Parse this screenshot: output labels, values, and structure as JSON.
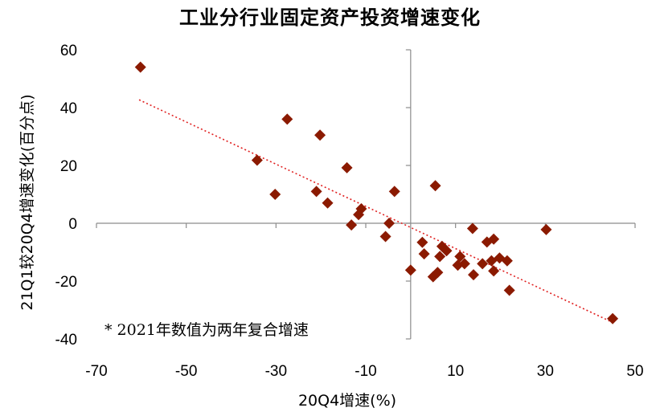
{
  "chart_data": {
    "type": "scatter",
    "title": "工业分行业固定资产投资增速变化",
    "xlabel": "20Q4增速(%)",
    "ylabel": "21Q1较20Q4增速变化(百分点)",
    "note": "* 2021年数值为两年复合增速",
    "xlim": [
      -70,
      50
    ],
    "ylim": [
      -40,
      60
    ],
    "x_ticks": [
      "-70",
      "-50",
      "-30",
      "-10",
      "10",
      "30",
      "50"
    ],
    "y_ticks": [
      "60",
      "40",
      "20",
      "0",
      "-20",
      "-40"
    ],
    "x_tick_values": [
      -70,
      -50,
      -30,
      -10,
      10,
      30,
      50
    ],
    "y_tick_values": [
      60,
      40,
      20,
      0,
      -20,
      -40
    ],
    "marker_color": "#8B1A00",
    "trend_color": "#E02020",
    "grid": false,
    "points": [
      {
        "x": -60.2,
        "y": 54.0
      },
      {
        "x": -27.5,
        "y": 36.0
      },
      {
        "x": -20.2,
        "y": 30.5
      },
      {
        "x": -34.2,
        "y": 21.8
      },
      {
        "x": -14.2,
        "y": 19.2
      },
      {
        "x": -30.2,
        "y": 10.0
      },
      {
        "x": -21.0,
        "y": 11.0
      },
      {
        "x": -18.5,
        "y": 7.0
      },
      {
        "x": -11.0,
        "y": 5.0
      },
      {
        "x": -11.6,
        "y": 3.0
      },
      {
        "x": -3.6,
        "y": 11.0
      },
      {
        "x": -13.2,
        "y": -0.6
      },
      {
        "x": -4.8,
        "y": 0.0
      },
      {
        "x": -5.6,
        "y": -4.6
      },
      {
        "x": 5.5,
        "y": 13.0
      },
      {
        "x": 2.6,
        "y": -6.6
      },
      {
        "x": 3.0,
        "y": -10.6
      },
      {
        "x": 0.0,
        "y": -16.2
      },
      {
        "x": 5.0,
        "y": -18.5
      },
      {
        "x": 6.0,
        "y": -17.0
      },
      {
        "x": 6.5,
        "y": -11.5
      },
      {
        "x": 7.0,
        "y": -8.0
      },
      {
        "x": 8.0,
        "y": -9.5
      },
      {
        "x": 10.5,
        "y": -14.5
      },
      {
        "x": 11.0,
        "y": -11.5
      },
      {
        "x": 12.0,
        "y": -14.0
      },
      {
        "x": 13.8,
        "y": -1.8
      },
      {
        "x": 14.0,
        "y": -17.8
      },
      {
        "x": 16.0,
        "y": -14.0
      },
      {
        "x": 17.0,
        "y": -6.5
      },
      {
        "x": 18.0,
        "y": -13.0
      },
      {
        "x": 18.5,
        "y": -5.5
      },
      {
        "x": 18.5,
        "y": -16.5
      },
      {
        "x": 19.8,
        "y": -12.0
      },
      {
        "x": 21.5,
        "y": -13.0
      },
      {
        "x": 22.0,
        "y": -23.2
      },
      {
        "x": 30.2,
        "y": -2.2
      },
      {
        "x": 45.0,
        "y": -33.0
      }
    ],
    "trendline": {
      "x": [
        -60.5,
        45.0
      ],
      "y": [
        42.7,
        -34.3
      ]
    }
  }
}
